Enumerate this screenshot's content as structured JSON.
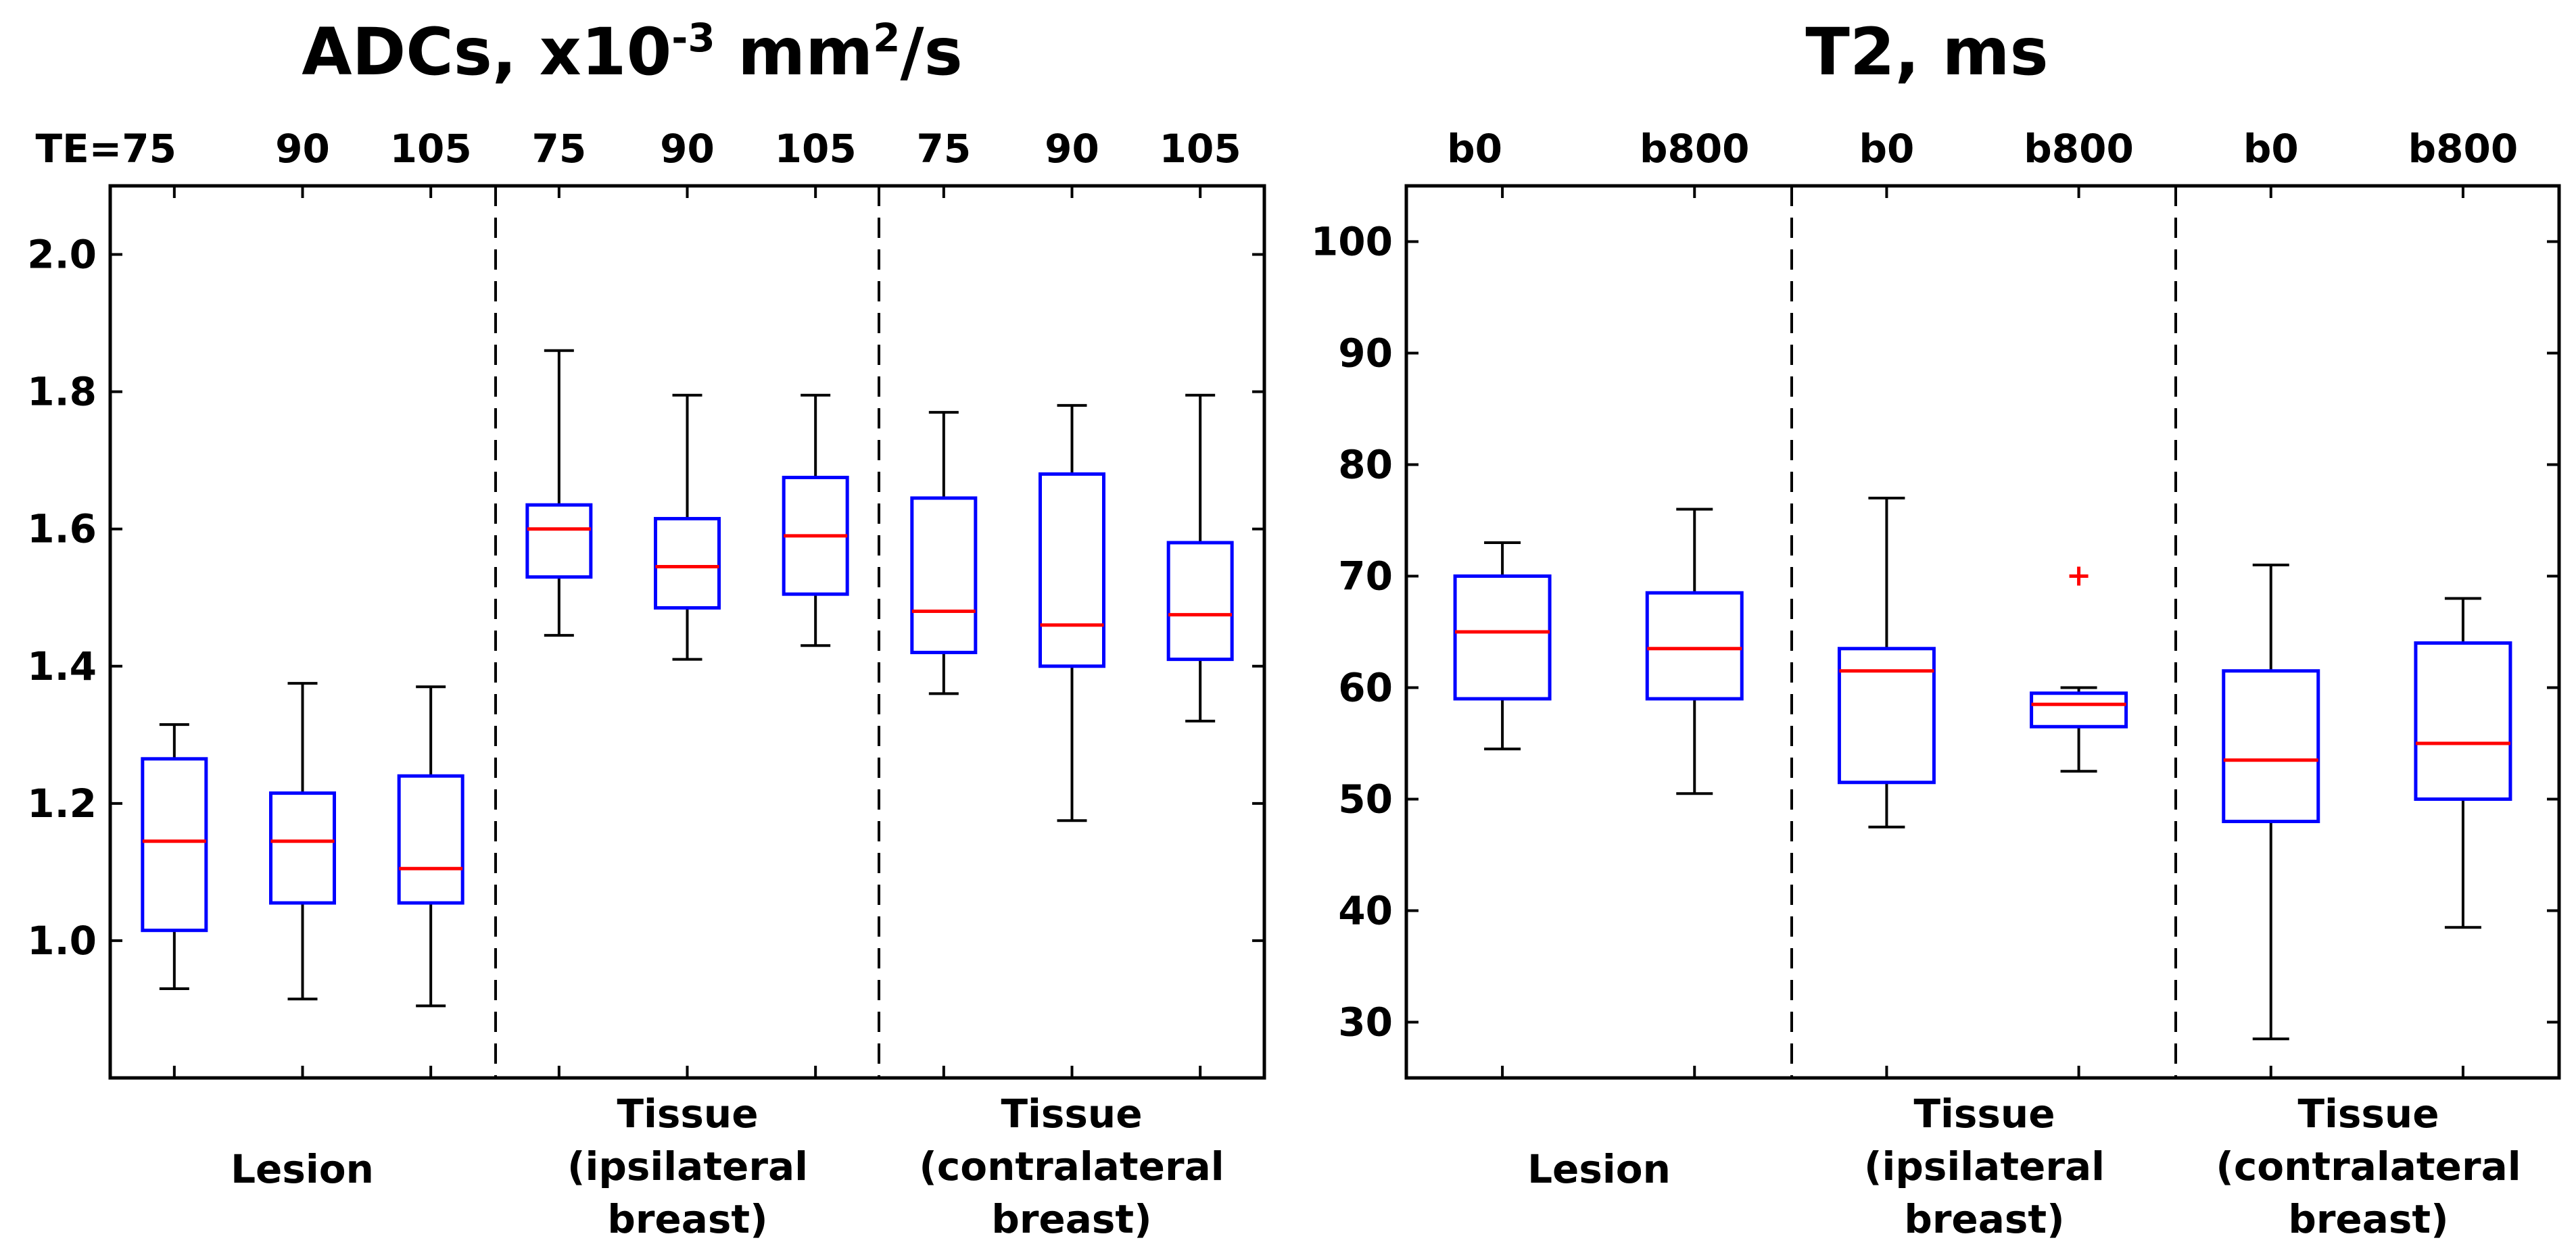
{
  "chart_data": [
    {
      "type": "boxplot",
      "title_parts": [
        {
          "text": "ADCs, x10"
        },
        {
          "text": "-3",
          "sup": true
        },
        {
          "text": " mm"
        },
        {
          "text": "2",
          "sup": true
        },
        {
          "text": "/s"
        }
      ],
      "ylim": [
        0.8,
        2.1
      ],
      "yticks": [
        "1.0",
        "1.2",
        "1.4",
        "1.6",
        "1.8",
        "2.0"
      ],
      "categories": [
        "TE=75",
        "90",
        "105",
        "75",
        "90",
        "105",
        "75",
        "90",
        "105"
      ],
      "groups": [
        {
          "lines": [
            "Lesion"
          ]
        },
        {
          "lines": [
            "Tissue",
            "(ipsilateral",
            "breast)"
          ]
        },
        {
          "lines": [
            "Tissue",
            "(contralateral",
            "breast)"
          ]
        }
      ],
      "boxes": [
        {
          "low": 0.93,
          "q1": 1.015,
          "median": 1.145,
          "q3": 1.265,
          "high": 1.315,
          "outliers": []
        },
        {
          "low": 0.915,
          "q1": 1.055,
          "median": 1.145,
          "q3": 1.215,
          "high": 1.375,
          "outliers": []
        },
        {
          "low": 0.905,
          "q1": 1.055,
          "median": 1.105,
          "q3": 1.24,
          "high": 1.37,
          "outliers": []
        },
        {
          "low": 1.445,
          "q1": 1.53,
          "median": 1.6,
          "q3": 1.635,
          "high": 1.86,
          "outliers": []
        },
        {
          "low": 1.41,
          "q1": 1.485,
          "median": 1.545,
          "q3": 1.615,
          "high": 1.795,
          "outliers": []
        },
        {
          "low": 1.43,
          "q1": 1.505,
          "median": 1.59,
          "q3": 1.675,
          "high": 1.795,
          "outliers": []
        },
        {
          "low": 1.36,
          "q1": 1.42,
          "median": 1.48,
          "q3": 1.645,
          "high": 1.77,
          "outliers": []
        },
        {
          "low": 1.175,
          "q1": 1.4,
          "median": 1.46,
          "q3": 1.68,
          "high": 1.78,
          "outliers": []
        },
        {
          "low": 1.32,
          "q1": 1.41,
          "median": 1.475,
          "q3": 1.58,
          "high": 1.795,
          "outliers": []
        }
      ]
    },
    {
      "type": "boxplot",
      "title_parts": [
        {
          "text": "T2, ms"
        }
      ],
      "ylim": [
        25,
        105
      ],
      "yticks": [
        "30",
        "40",
        "50",
        "60",
        "70",
        "80",
        "90",
        "100"
      ],
      "categories": [
        "b0",
        "b800",
        "b0",
        "b800",
        "b0",
        "b800"
      ],
      "groups": [
        {
          "lines": [
            "Lesion"
          ]
        },
        {
          "lines": [
            "Tissue",
            "(ipsilateral",
            "breast)"
          ]
        },
        {
          "lines": [
            "Tissue",
            "(contralateral",
            "breast)"
          ]
        }
      ],
      "boxes": [
        {
          "low": 54.5,
          "q1": 59,
          "median": 65,
          "q3": 70,
          "high": 73,
          "outliers": []
        },
        {
          "low": 50.5,
          "q1": 59,
          "median": 63.5,
          "q3": 68.5,
          "high": 76,
          "outliers": []
        },
        {
          "low": 47.5,
          "q1": 51.5,
          "median": 61.5,
          "q3": 63.5,
          "high": 77,
          "outliers": []
        },
        {
          "low": 52.5,
          "q1": 56.5,
          "median": 58.5,
          "q3": 59.5,
          "high": 60,
          "outliers": [
            70
          ]
        },
        {
          "low": 28.5,
          "q1": 48,
          "median": 53.5,
          "q3": 61.5,
          "high": 71,
          "outliers": []
        },
        {
          "low": 38.5,
          "q1": 50,
          "median": 55,
          "q3": 64,
          "high": 68,
          "outliers": []
        }
      ]
    }
  ],
  "colors": {
    "box": "#0000ff",
    "median": "#ff0000",
    "whisker": "#000000",
    "outlier": "#ff0000",
    "axes": "#000000",
    "divider": "#000000"
  }
}
